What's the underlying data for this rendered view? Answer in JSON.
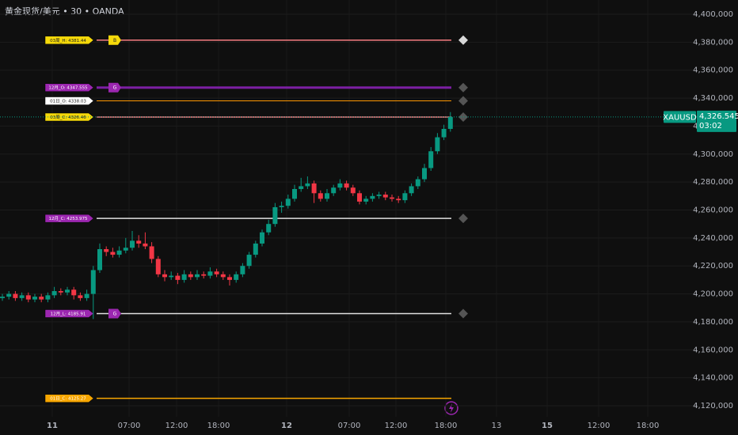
{
  "chart_data": {
    "type": "candlestick",
    "title": "黄金现货/美元 • 30 • OANDA",
    "symbol": "XAUUSD",
    "last_price": {
      "value": 4326.545,
      "label": "4,326.545"
    },
    "countdown": "03:02",
    "up_color": "#089981",
    "down_color": "#f23645",
    "grid": true,
    "ylim": [
      4120,
      4400
    ],
    "yticks": [
      {
        "value": 4120,
        "label": "4,120,000"
      },
      {
        "value": 4140,
        "label": "4,140,000"
      },
      {
        "value": 4160,
        "label": "4,160,000"
      },
      {
        "value": 4180,
        "label": "4,180,000"
      },
      {
        "value": 4200,
        "label": "4,200,000"
      },
      {
        "value": 4220,
        "label": "4,220,000"
      },
      {
        "value": 4240,
        "label": "4,240,000"
      },
      {
        "value": 4260,
        "label": "4,260,000"
      },
      {
        "value": 4280,
        "label": "4,280,000"
      },
      {
        "value": 4300,
        "label": "4,300,000"
      },
      {
        "value": 4320,
        "label": "4,320,000"
      },
      {
        "value": 4340,
        "label": "4,340,000"
      },
      {
        "value": 4360,
        "label": "4,360,000"
      },
      {
        "value": 4380,
        "label": "4,380,000"
      },
      {
        "value": 4400,
        "label": "4,400,000"
      }
    ],
    "time_labels": [
      "11",
      "07:00",
      "12:00",
      "18:00",
      "12",
      "07:00",
      "12:00",
      "18:00",
      "13",
      "15",
      "12:00",
      "18:00"
    ],
    "open": [
      4197,
      4198,
      4200,
      4197,
      4199,
      4196,
      4198,
      4196,
      4199,
      4202,
      4201,
      4203,
      4199,
      4197,
      4200,
      4217,
      4232,
      4230,
      4228,
      4231,
      4233,
      4238,
      4236,
      4234,
      4225,
      4214,
      4212,
      4213,
      4210,
      4214,
      4212,
      4214,
      4213,
      4216,
      4214,
      4212,
      4210,
      4214,
      4220,
      4228,
      4236,
      4244,
      4250,
      4262,
      4263,
      4268,
      4275,
      4277,
      4279,
      4272,
      4268,
      4272,
      4276,
      4279,
      4276,
      4272,
      4266,
      4268,
      4270,
      4271,
      4269,
      4268,
      4267,
      4272,
      4277,
      4282,
      4290,
      4302,
      4312,
      4318
    ],
    "high": [
      4200,
      4202,
      4202,
      4201,
      4201,
      4200,
      4200,
      4201,
      4205,
      4204,
      4205,
      4205,
      4201,
      4203,
      4220,
      4236,
      4234,
      4233,
      4234,
      4240,
      4245,
      4242,
      4244,
      4237,
      4227,
      4217,
      4216,
      4215,
      4217,
      4216,
      4217,
      4216,
      4219,
      4218,
      4216,
      4214,
      4216,
      4222,
      4230,
      4238,
      4246,
      4253,
      4265,
      4266,
      4271,
      4278,
      4283,
      4284,
      4281,
      4274,
      4275,
      4278,
      4282,
      4281,
      4278,
      4274,
      4270,
      4272,
      4273,
      4273,
      4271,
      4270,
      4274,
      4279,
      4284,
      4293,
      4305,
      4315,
      4321,
      4330
    ],
    "low": [
      4195,
      4196,
      4195,
      4195,
      4194,
      4194,
      4194,
      4194,
      4197,
      4199,
      4199,
      4196,
      4195,
      4195,
      4182,
      4215,
      4227,
      4226,
      4226,
      4229,
      4231,
      4233,
      4232,
      4222,
      4212,
      4209,
      4210,
      4207,
      4208,
      4210,
      4210,
      4211,
      4211,
      4212,
      4210,
      4206,
      4208,
      4212,
      4218,
      4226,
      4234,
      4242,
      4248,
      4258,
      4261,
      4266,
      4273,
      4275,
      4265,
      4266,
      4266,
      4270,
      4274,
      4274,
      4270,
      4264,
      4264,
      4266,
      4268,
      4267,
      4266,
      4265,
      4265,
      4270,
      4275,
      4280,
      4288,
      4300,
      4310,
      4316
    ],
    "close": [
      4198,
      4200,
      4197,
      4199,
      4196,
      4198,
      4196,
      4199,
      4202,
      4201,
      4203,
      4199,
      4197,
      4200,
      4217,
      4232,
      4230,
      4228,
      4231,
      4233,
      4238,
      4236,
      4234,
      4225,
      4214,
      4212,
      4213,
      4210,
      4214,
      4212,
      4214,
      4213,
      4216,
      4214,
      4212,
      4210,
      4214,
      4220,
      4228,
      4236,
      4244,
      4250,
      4262,
      4263,
      4268,
      4275,
      4277,
      4279,
      4272,
      4268,
      4272,
      4276,
      4279,
      4276,
      4272,
      4266,
      4268,
      4270,
      4271,
      4269,
      4268,
      4267,
      4272,
      4277,
      4282,
      4290,
      4302,
      4312,
      4318,
      4326.545
    ],
    "levels": [
      {
        "label": "03周_H: 4381.44",
        "value": 4381.44,
        "color": "#f77c80",
        "tag_color": "#f5d90a",
        "badge": "B",
        "end_marker": true
      },
      {
        "label": "12月_O: 4347.555",
        "value": 4347.555,
        "color": "#7b1fa2",
        "tag_color": "#9c27b0",
        "badge": "G",
        "end_marker": true
      },
      {
        "label": "01日_O: 4338.03",
        "value": 4338.03,
        "color": "#ff9800",
        "tag_color": "#ffffff",
        "end_marker": true
      },
      {
        "label": "03周_C: 4326.46",
        "value": 4326.46,
        "color": "#f77c80",
        "tag_color": "#f5d90a",
        "end_marker": true
      },
      {
        "label": "12月_C: 4253.975",
        "value": 4253.975,
        "color": "#e0e0e0",
        "tag_color": "#9c27b0",
        "end_marker": true
      },
      {
        "label": "12月_L: 4185.91",
        "value": 4185.91,
        "color": "#e0e0e0",
        "tag_color": "#9c27b0",
        "badge": "G",
        "end_marker": true
      },
      {
        "label": "01日_C: 4125.27",
        "value": 4125.27,
        "color": "#f7a600",
        "tag_color": "#f7a600",
        "end_marker": false
      }
    ]
  }
}
